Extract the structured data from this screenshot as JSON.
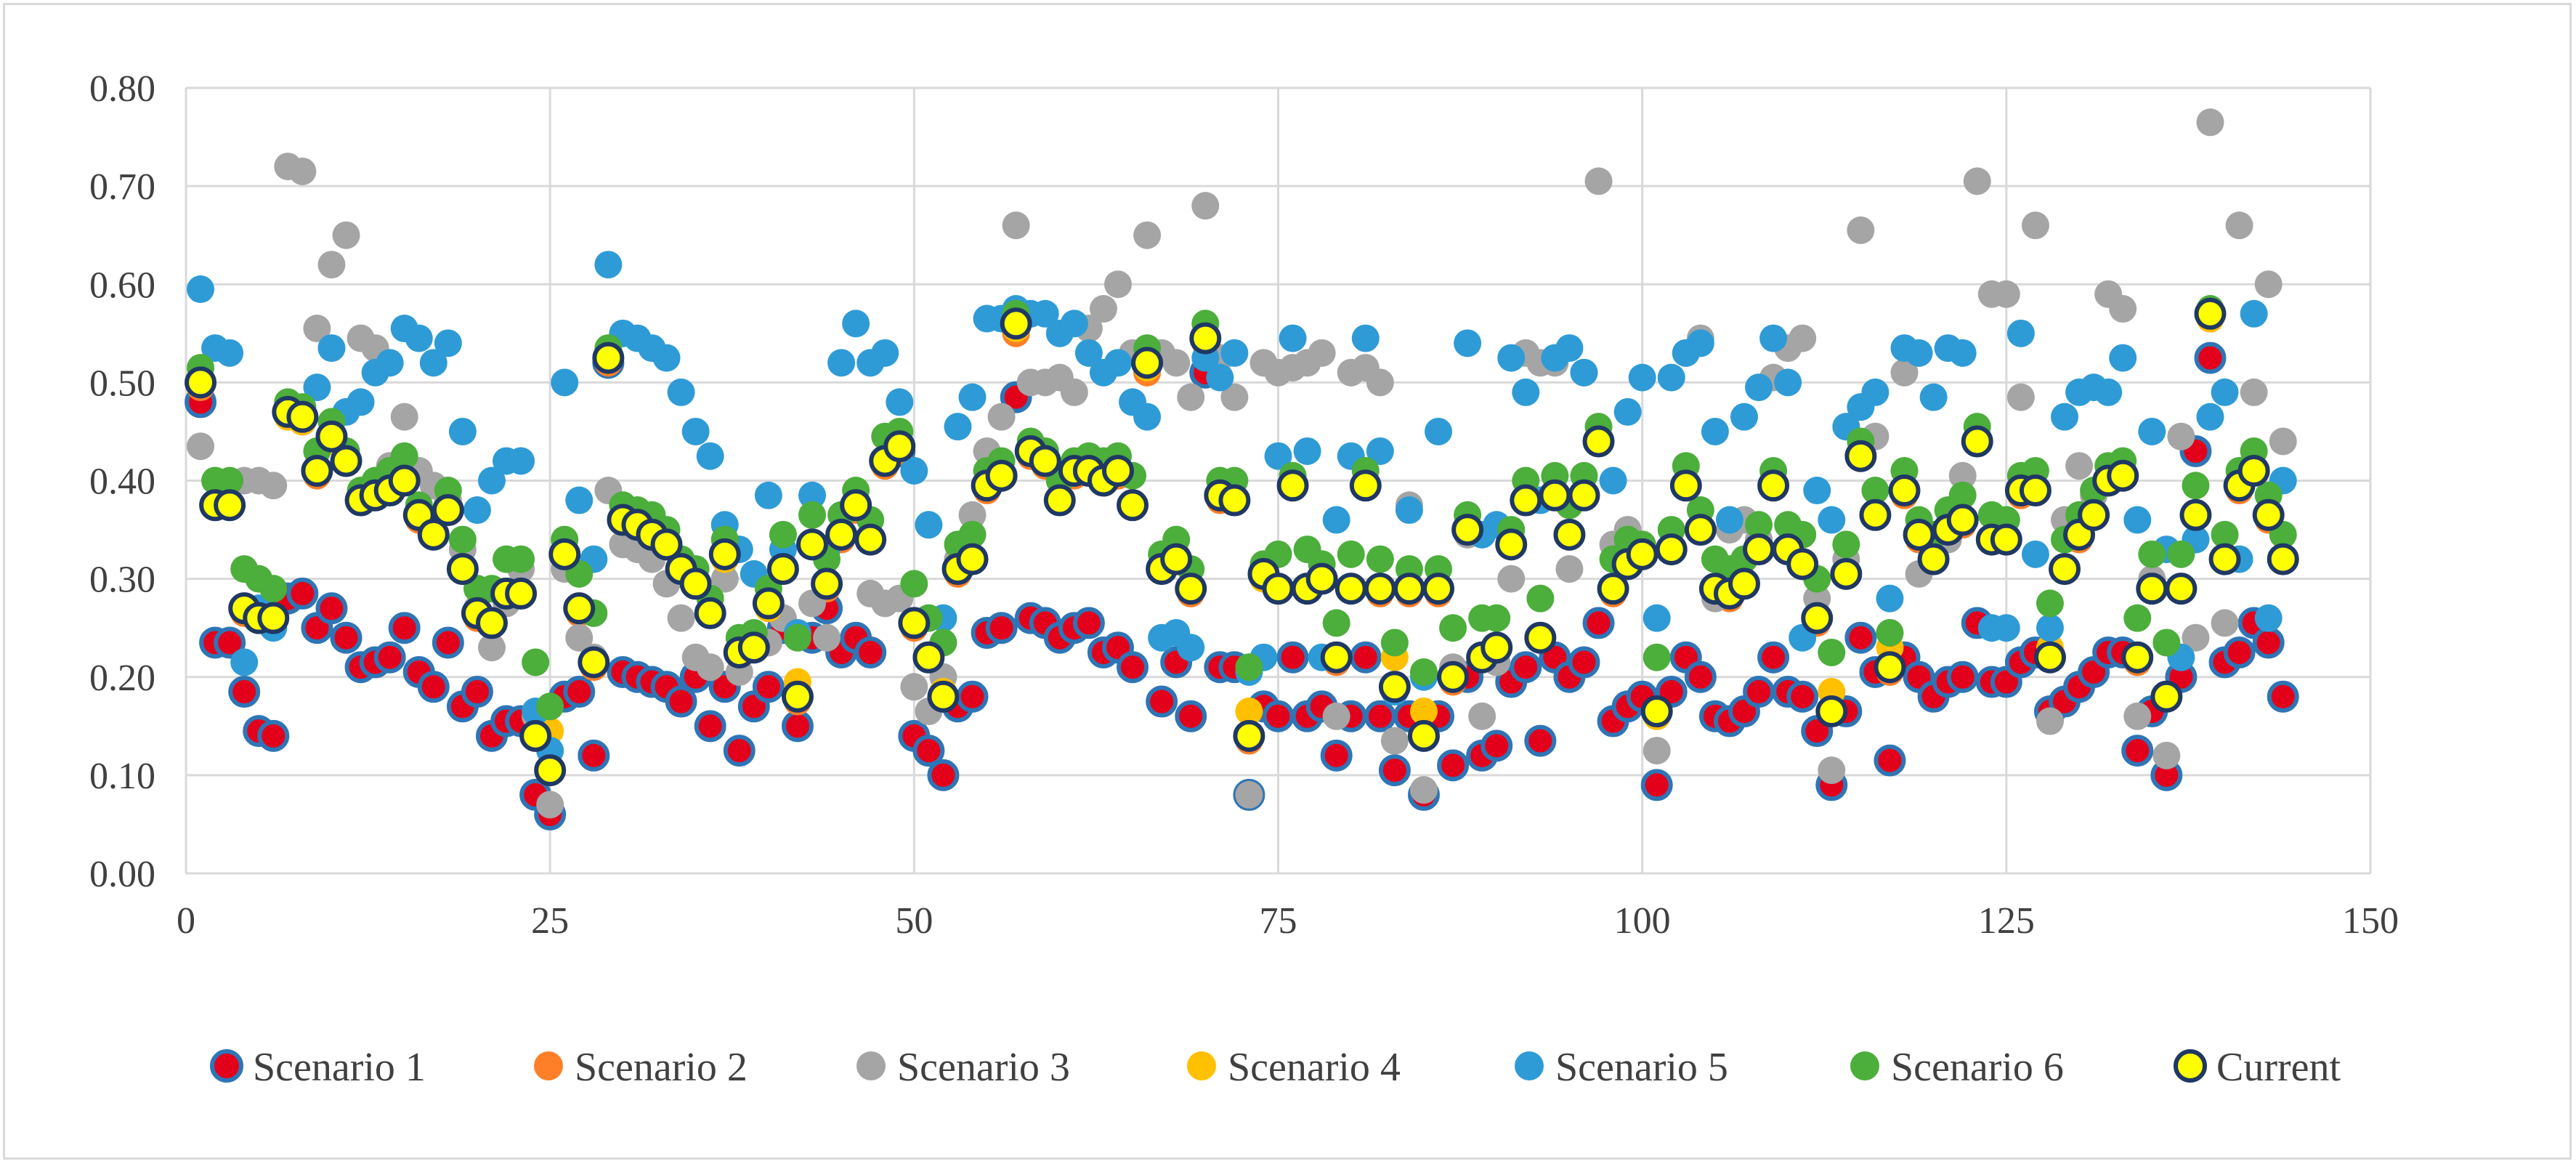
{
  "chart_data": {
    "type": "scatter",
    "title": "",
    "xlabel": "",
    "ylabel": "",
    "xlim": [
      0,
      150
    ],
    "ylim": [
      0,
      0.8
    ],
    "x_ticks": [
      "0",
      "25",
      "50",
      "75",
      "100",
      "125",
      "150"
    ],
    "y_ticks": [
      "0.00",
      "0.10",
      "0.20",
      "0.30",
      "0.40",
      "0.50",
      "0.60",
      "0.70",
      "0.80"
    ],
    "grid": true,
    "legend_position": "bottom",
    "x": [
      1,
      2,
      3,
      4,
      5,
      6,
      7,
      8,
      9,
      10,
      11,
      12,
      13,
      14,
      15,
      16,
      17,
      18,
      19,
      20,
      21,
      22,
      23,
      24,
      25,
      26,
      27,
      28,
      29,
      30,
      31,
      32,
      33,
      34,
      35,
      36,
      37,
      38,
      39,
      40,
      41,
      42,
      43,
      44,
      45,
      46,
      47,
      48,
      49,
      50,
      51,
      52,
      53,
      54,
      55,
      56,
      57,
      58,
      59,
      60,
      61,
      62,
      63,
      64,
      65,
      66,
      67,
      68,
      69,
      70,
      71,
      72,
      73,
      74,
      75,
      76,
      77,
      78,
      79,
      80,
      81,
      82,
      83,
      84,
      85,
      86,
      87,
      88,
      89,
      90,
      91,
      92,
      93,
      94,
      95,
      96,
      97,
      98,
      99,
      100,
      101,
      102,
      103,
      104,
      105,
      106,
      107,
      108,
      109,
      110,
      111,
      112,
      113,
      114,
      115,
      116,
      117,
      118,
      119,
      120,
      121,
      122,
      123,
      124,
      125,
      126,
      127,
      128,
      129,
      130,
      131,
      132,
      133,
      134,
      135,
      136,
      137,
      138,
      139,
      140,
      141,
      142,
      143,
      144
    ],
    "series": [
      {
        "name": "Scenario 1",
        "color": "#e3001b",
        "stroke": "#2e75b6",
        "values": [
          0.48,
          0.235,
          0.235,
          0.185,
          0.145,
          0.14,
          0.28,
          0.285,
          0.25,
          0.27,
          0.24,
          0.21,
          0.215,
          0.22,
          0.25,
          0.205,
          0.19,
          0.235,
          0.17,
          0.185,
          0.14,
          0.155,
          0.155,
          0.08,
          0.06,
          0.18,
          0.185,
          0.12,
          0.52,
          0.205,
          0.2,
          0.195,
          0.19,
          0.175,
          0.2,
          0.15,
          0.19,
          0.125,
          0.17,
          0.19,
          0.25,
          0.15,
          0.24,
          0.27,
          0.225,
          0.24,
          0.225,
          0.42,
          0.43,
          0.14,
          0.125,
          0.1,
          0.17,
          0.18,
          0.245,
          0.25,
          0.485,
          0.26,
          0.255,
          0.24,
          0.25,
          0.255,
          0.225,
          0.23,
          0.21,
          0.52,
          0.175,
          0.215,
          0.16,
          0.51,
          0.21,
          0.21,
          0.08,
          0.17,
          0.16,
          0.22,
          0.16,
          0.17,
          0.12,
          0.16,
          0.22,
          0.16,
          0.105,
          0.16,
          0.08,
          0.16,
          0.11,
          0.2,
          0.12,
          0.13,
          0.195,
          0.21,
          0.135,
          0.22,
          0.2,
          0.215,
          0.255,
          0.155,
          0.17,
          0.18,
          0.09,
          0.185,
          0.22,
          0.2,
          0.16,
          0.155,
          0.165,
          0.185,
          0.22,
          0.185,
          0.18,
          0.145,
          0.09,
          0.165,
          0.24,
          0.205,
          0.115,
          0.22,
          0.2,
          0.18,
          0.195,
          0.2,
          0.255,
          0.195,
          0.195,
          0.215,
          0.225,
          0.165,
          0.175,
          0.19,
          0.205,
          0.225,
          0.225,
          0.125,
          0.165,
          0.1,
          0.2,
          0.43,
          0.525,
          0.215,
          0.225,
          0.255,
          0.235,
          0.18
        ]
      },
      {
        "name": "Scenario 2",
        "color": "#fe7f27",
        "stroke": "#fe7f27",
        "values": [
          0.495,
          0.375,
          0.375,
          0.265,
          0.26,
          0.26,
          0.47,
          0.46,
          0.405,
          0.44,
          0.42,
          0.38,
          0.385,
          0.39,
          0.4,
          0.36,
          0.345,
          0.37,
          0.31,
          0.26,
          0.255,
          0.285,
          0.285,
          0.14,
          0.105,
          0.32,
          0.265,
          0.21,
          0.52,
          0.36,
          0.355,
          0.345,
          0.335,
          0.305,
          0.295,
          0.265,
          0.32,
          0.225,
          0.23,
          0.27,
          0.31,
          0.175,
          0.335,
          0.29,
          0.34,
          0.37,
          0.34,
          0.415,
          0.43,
          0.25,
          0.22,
          0.18,
          0.305,
          0.32,
          0.39,
          0.405,
          0.55,
          0.425,
          0.415,
          0.38,
          0.405,
          0.41,
          0.4,
          0.405,
          0.375,
          0.51,
          0.31,
          0.32,
          0.285,
          0.54,
          0.38,
          0.38,
          0.135,
          0.3,
          0.29,
          0.395,
          0.29,
          0.3,
          0.215,
          0.29,
          0.395,
          0.285,
          0.19,
          0.285,
          0.14,
          0.285,
          0.195,
          0.35,
          0.22,
          0.23,
          0.335,
          0.38,
          0.24,
          0.385,
          0.345,
          0.385,
          0.44,
          0.285,
          0.315,
          0.325,
          0.16,
          0.33,
          0.395,
          0.35,
          0.29,
          0.28,
          0.295,
          0.33,
          0.395,
          0.33,
          0.315,
          0.255,
          0.165,
          0.305,
          0.425,
          0.365,
          0.205,
          0.385,
          0.34,
          0.32,
          0.35,
          0.355,
          0.44,
          0.34,
          0.34,
          0.385,
          0.39,
          0.22,
          0.31,
          0.34,
          0.365,
          0.4,
          0.405,
          0.215,
          0.29,
          0.18,
          0.29,
          0.365,
          0.565,
          0.32,
          0.39,
          0.41,
          0.36,
          0.32
        ]
      },
      {
        "name": "Scenario 3",
        "color": "#a5a5a5",
        "stroke": "#a5a5a5",
        "values": [
          0.435,
          0.4,
          0.395,
          0.4,
          0.4,
          0.395,
          0.72,
          0.715,
          0.555,
          0.62,
          0.65,
          0.545,
          0.535,
          0.415,
          0.465,
          0.41,
          0.395,
          0.38,
          0.33,
          0.27,
          0.23,
          0.275,
          0.31,
          0.16,
          0.07,
          0.31,
          0.24,
          0.22,
          0.39,
          0.335,
          0.33,
          0.32,
          0.295,
          0.26,
          0.22,
          0.21,
          0.3,
          0.205,
          0.23,
          0.235,
          0.26,
          0.18,
          0.275,
          0.24,
          0.345,
          0.375,
          0.285,
          0.275,
          0.28,
          0.19,
          0.165,
          0.2,
          0.32,
          0.365,
          0.43,
          0.465,
          0.66,
          0.5,
          0.5,
          0.505,
          0.49,
          0.555,
          0.575,
          0.6,
          0.53,
          0.65,
          0.53,
          0.52,
          0.485,
          0.68,
          0.525,
          0.485,
          0.08,
          0.52,
          0.51,
          0.515,
          0.52,
          0.53,
          0.16,
          0.51,
          0.515,
          0.5,
          0.135,
          0.375,
          0.085,
          0.29,
          0.21,
          0.345,
          0.16,
          0.215,
          0.3,
          0.53,
          0.52,
          0.52,
          0.31,
          0.51,
          0.705,
          0.335,
          0.35,
          0.335,
          0.125,
          0.33,
          0.53,
          0.545,
          0.28,
          0.35,
          0.36,
          0.34,
          0.505,
          0.535,
          0.545,
          0.28,
          0.105,
          0.32,
          0.655,
          0.445,
          0.245,
          0.51,
          0.305,
          0.335,
          0.34,
          0.405,
          0.705,
          0.59,
          0.59,
          0.485,
          0.66,
          0.155,
          0.36,
          0.415,
          0.385,
          0.59,
          0.575,
          0.16,
          0.3,
          0.12,
          0.445,
          0.24,
          0.765,
          0.255,
          0.66,
          0.49,
          0.6,
          0.44
        ]
      },
      {
        "name": "Scenario 4",
        "color": "#ffc000",
        "stroke": "#ffc000",
        "values": [
          0.5,
          0.375,
          0.375,
          0.27,
          0.26,
          0.255,
          0.465,
          0.46,
          0.41,
          0.44,
          0.42,
          0.38,
          0.385,
          0.39,
          0.4,
          0.365,
          0.345,
          0.37,
          0.31,
          0.265,
          0.255,
          0.285,
          0.285,
          0.14,
          0.145,
          0.325,
          0.27,
          0.215,
          0.525,
          0.36,
          0.355,
          0.345,
          0.335,
          0.31,
          0.3,
          0.265,
          0.32,
          0.225,
          0.235,
          0.27,
          0.31,
          0.195,
          0.335,
          0.295,
          0.345,
          0.375,
          0.34,
          0.42,
          0.435,
          0.255,
          0.22,
          0.185,
          0.31,
          0.32,
          0.395,
          0.405,
          0.555,
          0.43,
          0.42,
          0.38,
          0.41,
          0.41,
          0.4,
          0.41,
          0.375,
          0.515,
          0.31,
          0.325,
          0.29,
          0.545,
          0.385,
          0.38,
          0.165,
          0.3,
          0.29,
          0.395,
          0.29,
          0.3,
          0.22,
          0.29,
          0.395,
          0.29,
          0.22,
          0.29,
          0.165,
          0.29,
          0.2,
          0.35,
          0.22,
          0.23,
          0.335,
          0.38,
          0.24,
          0.385,
          0.345,
          0.385,
          0.44,
          0.29,
          0.315,
          0.325,
          0.16,
          0.33,
          0.395,
          0.35,
          0.29,
          0.285,
          0.295,
          0.33,
          0.395,
          0.33,
          0.315,
          0.26,
          0.185,
          0.305,
          0.425,
          0.365,
          0.23,
          0.39,
          0.345,
          0.32,
          0.35,
          0.36,
          0.44,
          0.34,
          0.34,
          0.39,
          0.39,
          0.23,
          0.31,
          0.345,
          0.365,
          0.4,
          0.405,
          0.22,
          0.29,
          0.18,
          0.29,
          0.365,
          0.565,
          0.32,
          0.395,
          0.41,
          0.365,
          0.32
        ]
      },
      {
        "name": "Scenario 5",
        "color": "#2e9bd6",
        "stroke": "#2e9bd6",
        "values": [
          0.595,
          0.535,
          0.53,
          0.215,
          0.27,
          0.25,
          0.475,
          0.465,
          0.495,
          0.535,
          0.47,
          0.48,
          0.51,
          0.52,
          0.555,
          0.545,
          0.52,
          0.54,
          0.45,
          0.37,
          0.4,
          0.42,
          0.42,
          0.165,
          0.125,
          0.5,
          0.38,
          0.32,
          0.62,
          0.55,
          0.545,
          0.535,
          0.525,
          0.49,
          0.45,
          0.425,
          0.355,
          0.33,
          0.305,
          0.385,
          0.33,
          0.245,
          0.385,
          0.33,
          0.52,
          0.56,
          0.52,
          0.53,
          0.48,
          0.41,
          0.355,
          0.26,
          0.455,
          0.485,
          0.565,
          0.565,
          0.575,
          0.57,
          0.57,
          0.55,
          0.56,
          0.53,
          0.51,
          0.52,
          0.48,
          0.465,
          0.24,
          0.245,
          0.23,
          0.525,
          0.505,
          0.53,
          0.205,
          0.22,
          0.425,
          0.545,
          0.43,
          0.22,
          0.36,
          0.425,
          0.545,
          0.43,
          0.185,
          0.37,
          0.2,
          0.45,
          0.2,
          0.54,
          0.345,
          0.355,
          0.525,
          0.49,
          0.38,
          0.525,
          0.535,
          0.51,
          0.44,
          0.4,
          0.47,
          0.505,
          0.26,
          0.505,
          0.53,
          0.54,
          0.45,
          0.36,
          0.465,
          0.495,
          0.545,
          0.5,
          0.24,
          0.39,
          0.36,
          0.455,
          0.475,
          0.49,
          0.28,
          0.535,
          0.53,
          0.485,
          0.535,
          0.53,
          0.445,
          0.25,
          0.25,
          0.55,
          0.325,
          0.25,
          0.465,
          0.49,
          0.495,
          0.49,
          0.525,
          0.36,
          0.45,
          0.33,
          0.22,
          0.34,
          0.465,
          0.49,
          0.32,
          0.57,
          0.26,
          0.4
        ]
      },
      {
        "name": "Scenario 6",
        "color": "#4cae3b",
        "stroke": "#4cae3b",
        "values": [
          0.515,
          0.4,
          0.4,
          0.31,
          0.3,
          0.29,
          0.48,
          0.475,
          0.43,
          0.46,
          0.43,
          0.39,
          0.4,
          0.41,
          0.425,
          0.375,
          0.36,
          0.39,
          0.34,
          0.29,
          0.29,
          0.32,
          0.32,
          0.215,
          0.17,
          0.34,
          0.305,
          0.265,
          0.535,
          0.375,
          0.37,
          0.365,
          0.35,
          0.32,
          0.31,
          0.28,
          0.34,
          0.24,
          0.245,
          0.29,
          0.345,
          0.24,
          0.365,
          0.32,
          0.365,
          0.39,
          0.36,
          0.445,
          0.45,
          0.295,
          0.26,
          0.235,
          0.335,
          0.345,
          0.41,
          0.42,
          0.57,
          0.44,
          0.43,
          0.4,
          0.42,
          0.425,
          0.42,
          0.425,
          0.405,
          0.535,
          0.325,
          0.34,
          0.31,
          0.56,
          0.4,
          0.4,
          0.21,
          0.315,
          0.325,
          0.405,
          0.33,
          0.315,
          0.255,
          0.325,
          0.41,
          0.32,
          0.235,
          0.31,
          0.205,
          0.31,
          0.25,
          0.365,
          0.26,
          0.26,
          0.35,
          0.4,
          0.28,
          0.405,
          0.375,
          0.405,
          0.455,
          0.32,
          0.34,
          0.335,
          0.22,
          0.35,
          0.415,
          0.37,
          0.32,
          0.31,
          0.32,
          0.355,
          0.41,
          0.355,
          0.345,
          0.3,
          0.225,
          0.335,
          0.44,
          0.39,
          0.245,
          0.41,
          0.36,
          0.345,
          0.37,
          0.385,
          0.455,
          0.365,
          0.36,
          0.405,
          0.41,
          0.275,
          0.34,
          0.365,
          0.39,
          0.415,
          0.42,
          0.26,
          0.325,
          0.235,
          0.325,
          0.395,
          0.575,
          0.345,
          0.41,
          0.43,
          0.385,
          0.345
        ]
      },
      {
        "name": "Current",
        "color": "#ffff00",
        "stroke": "#1f3864",
        "values": [
          0.5,
          0.375,
          0.375,
          0.27,
          0.26,
          0.26,
          0.47,
          0.465,
          0.41,
          0.445,
          0.42,
          0.38,
          0.385,
          0.39,
          0.4,
          0.365,
          0.345,
          0.37,
          0.31,
          0.265,
          0.255,
          0.285,
          0.285,
          0.14,
          0.105,
          0.325,
          0.27,
          0.215,
          0.525,
          0.36,
          0.355,
          0.345,
          0.335,
          0.31,
          0.295,
          0.265,
          0.325,
          0.225,
          0.23,
          0.275,
          0.31,
          0.18,
          0.335,
          0.295,
          0.345,
          0.375,
          0.34,
          0.42,
          0.435,
          0.255,
          0.22,
          0.18,
          0.31,
          0.32,
          0.395,
          0.405,
          0.56,
          0.43,
          0.42,
          0.38,
          0.41,
          0.41,
          0.4,
          0.41,
          0.375,
          0.52,
          0.31,
          0.32,
          0.29,
          0.545,
          0.385,
          0.38,
          0.14,
          0.305,
          0.29,
          0.395,
          0.29,
          0.3,
          0.22,
          0.29,
          0.395,
          0.29,
          0.19,
          0.29,
          0.14,
          0.29,
          0.2,
          0.35,
          0.22,
          0.23,
          0.335,
          0.38,
          0.24,
          0.385,
          0.345,
          0.385,
          0.44,
          0.29,
          0.315,
          0.325,
          0.165,
          0.33,
          0.395,
          0.35,
          0.29,
          0.285,
          0.295,
          0.33,
          0.395,
          0.33,
          0.315,
          0.26,
          0.165,
          0.305,
          0.425,
          0.365,
          0.21,
          0.39,
          0.345,
          0.32,
          0.35,
          0.36,
          0.44,
          0.34,
          0.34,
          0.39,
          0.39,
          0.22,
          0.31,
          0.345,
          0.365,
          0.4,
          0.405,
          0.22,
          0.29,
          0.18,
          0.29,
          0.365,
          0.57,
          0.32,
          0.395,
          0.41,
          0.365,
          0.32
        ]
      }
    ]
  }
}
